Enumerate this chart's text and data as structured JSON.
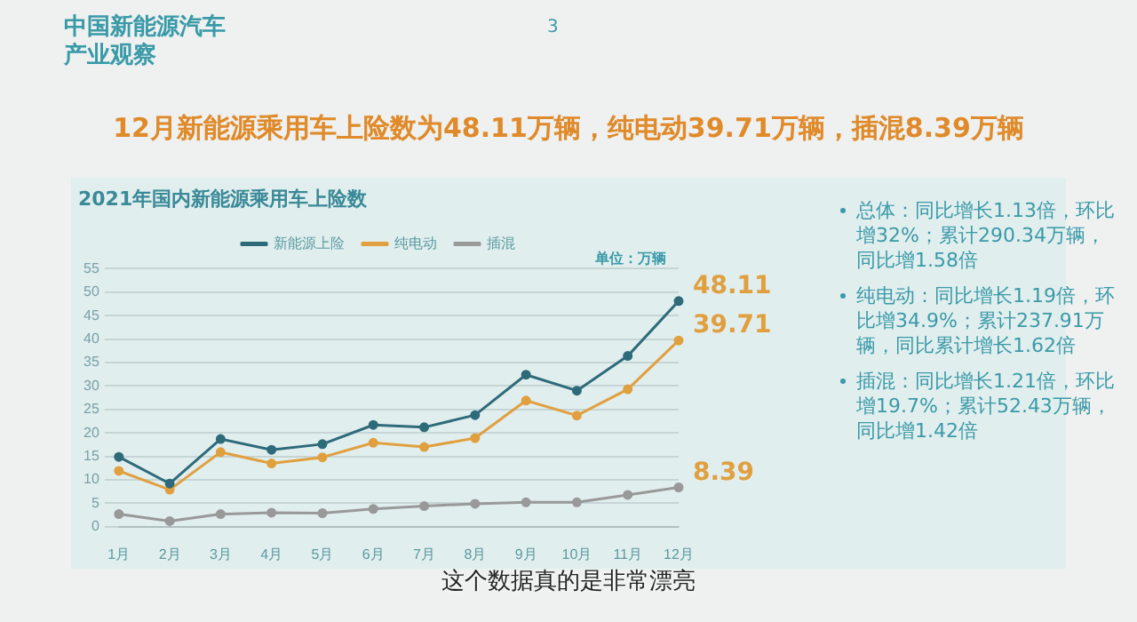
{
  "chart_data": {
    "type": "line",
    "title": "2021年国内新能源乘用车上险数",
    "subtitle": "12月新能源乘用车上险数为48.11万辆，纯电动39.71万辆，插混8.39万辆",
    "annotations": [
      "中国新能源汽车产业观察",
      "3",
      "单位：万辆",
      "总体：同比增长1.13倍，环比增32%；累计290.34万辆，同比增1.58倍",
      "纯电动：同比增长1.19倍，环比增34.9%；累计237.91万辆，同比累计增长1.62倍",
      "插混：同比增长1.21倍，环比增19.7%；累计52.43万辆，同比增1.42倍",
      "这个数据真的是非常漂亮"
    ],
    "categories": [
      "1月",
      "2月",
      "3月",
      "4月",
      "5月",
      "6月",
      "7月",
      "8月",
      "9月",
      "10月",
      "11月",
      "12月"
    ],
    "series": [
      {
        "name": "新能源上险",
        "color": "#2e6b7a",
        "values": [
          14.9,
          9.2,
          18.7,
          16.4,
          17.6,
          21.7,
          21.2,
          23.8,
          32.4,
          29,
          36.4,
          48.11
        ],
        "value_labels": [
          null,
          null,
          null,
          null,
          null,
          null,
          null,
          null,
          null,
          null,
          null,
          "48.11"
        ]
      },
      {
        "name": "纯电动",
        "color": "#e0a040",
        "values": [
          11.9,
          7.9,
          15.9,
          13.5,
          14.8,
          17.9,
          17,
          18.9,
          26.9,
          23.7,
          29.3,
          39.71
        ],
        "value_labels": [
          null,
          null,
          null,
          null,
          null,
          null,
          null,
          null,
          null,
          null,
          null,
          "39.71"
        ]
      },
      {
        "name": "插混",
        "color": "#999999",
        "values": [
          2.7,
          1.2,
          2.7,
          3,
          2.9,
          3.8,
          4.4,
          4.9,
          5.2,
          5.2,
          6.8,
          8.39
        ],
        "value_labels": [
          null,
          null,
          null,
          null,
          null,
          null,
          null,
          null,
          null,
          null,
          null,
          "8.39"
        ]
      }
    ],
    "ylim": [
      0,
      55
    ],
    "yticks": [
      0,
      5,
      10,
      15,
      20,
      25,
      30,
      35,
      40,
      45,
      50,
      55
    ],
    "grid": "y",
    "legend": "top",
    "marker": "circle",
    "line_style": "solid"
  }
}
